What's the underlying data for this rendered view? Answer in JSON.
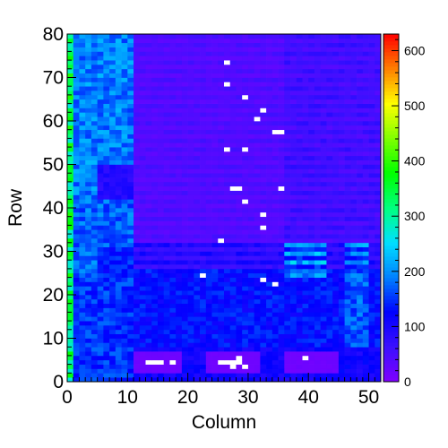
{
  "chart_data": {
    "type": "heatmap",
    "xlabel": "Column",
    "ylabel": "Row",
    "xlim": [
      0,
      52
    ],
    "ylim": [
      0,
      80
    ],
    "x_ticks": [
      "0",
      "10",
      "20",
      "30",
      "40",
      "50"
    ],
    "y_ticks": [
      "0",
      "10",
      "20",
      "30",
      "40",
      "50",
      "60",
      "70",
      "80"
    ],
    "colorbar": {
      "min": 0,
      "max": 630,
      "ticks": [
        "0",
        "100",
        "200",
        "300",
        "400",
        "500",
        "600"
      ],
      "palette": [
        "#7f00ff",
        "#3c10ff",
        "#0000ff",
        "#0080ff",
        "#00dfff",
        "#00ff7f",
        "#00ff00",
        "#7fff00",
        "#ffff00",
        "#ff8000",
        "#ff0000"
      ]
    },
    "bins": {
      "columns": 52,
      "rows": 80
    },
    "regions": [
      {
        "x": [
          0,
          1
        ],
        "y": [
          0,
          80
        ],
        "value": 330
      },
      {
        "x": [
          1,
          11
        ],
        "y": [
          42,
          80
        ],
        "value": 190
      },
      {
        "x": [
          1,
          11
        ],
        "y": [
          31,
          42
        ],
        "value": 175
      },
      {
        "x": [
          1,
          5
        ],
        "y": [
          24,
          31
        ],
        "value": 180
      },
      {
        "x": [
          5,
          11
        ],
        "y": [
          24,
          31
        ],
        "value": 140
      },
      {
        "x": [
          1,
          11
        ],
        "y": [
          0,
          24
        ],
        "value": 150
      },
      {
        "x": [
          5,
          11
        ],
        "y": [
          42,
          50
        ],
        "value": 90
      },
      {
        "x": [
          11,
          52
        ],
        "y": [
          26,
          80
        ],
        "value": 45
      },
      {
        "x": [
          36,
          52
        ],
        "y": [
          32,
          80
        ],
        "value": 60
      },
      {
        "x": [
          11,
          52
        ],
        "y": [
          26,
          32
        ],
        "value": 85
      },
      {
        "x": [
          11,
          52
        ],
        "y": [
          8,
          26
        ],
        "value": 130
      },
      {
        "x": [
          36,
          43
        ],
        "y": [
          24,
          32
        ],
        "value": 190
      },
      {
        "x": [
          46,
          50
        ],
        "y": [
          0,
          32
        ],
        "value": 170
      },
      {
        "x": [
          11,
          52
        ],
        "y": [
          0,
          8
        ],
        "value": 110
      },
      {
        "x": [
          11,
          19
        ],
        "y": [
          2,
          7
        ],
        "value": 15
      },
      {
        "x": [
          23,
          32
        ],
        "y": [
          2,
          7
        ],
        "value": 15
      },
      {
        "x": [
          36,
          45
        ],
        "y": [
          2,
          7
        ],
        "value": 15
      }
    ],
    "empty_bins": [
      [
        26,
        73
      ],
      [
        26,
        68
      ],
      [
        29,
        65
      ],
      [
        32,
        62
      ],
      [
        31,
        60
      ],
      [
        34,
        57
      ],
      [
        35,
        57
      ],
      [
        26,
        53
      ],
      [
        29,
        53
      ],
      [
        27,
        44
      ],
      [
        28,
        44
      ],
      [
        35,
        44
      ],
      [
        29,
        41
      ],
      [
        32,
        38
      ],
      [
        32,
        35
      ],
      [
        25,
        32
      ],
      [
        22,
        24
      ],
      [
        32,
        23
      ],
      [
        34,
        22
      ],
      [
        13,
        4
      ],
      [
        14,
        4
      ],
      [
        15,
        4
      ],
      [
        17,
        4
      ],
      [
        25,
        4
      ],
      [
        26,
        4
      ],
      [
        27,
        4
      ],
      [
        28,
        4
      ],
      [
        28,
        5
      ],
      [
        27,
        3
      ],
      [
        29,
        3
      ],
      [
        39,
        5
      ]
    ]
  }
}
